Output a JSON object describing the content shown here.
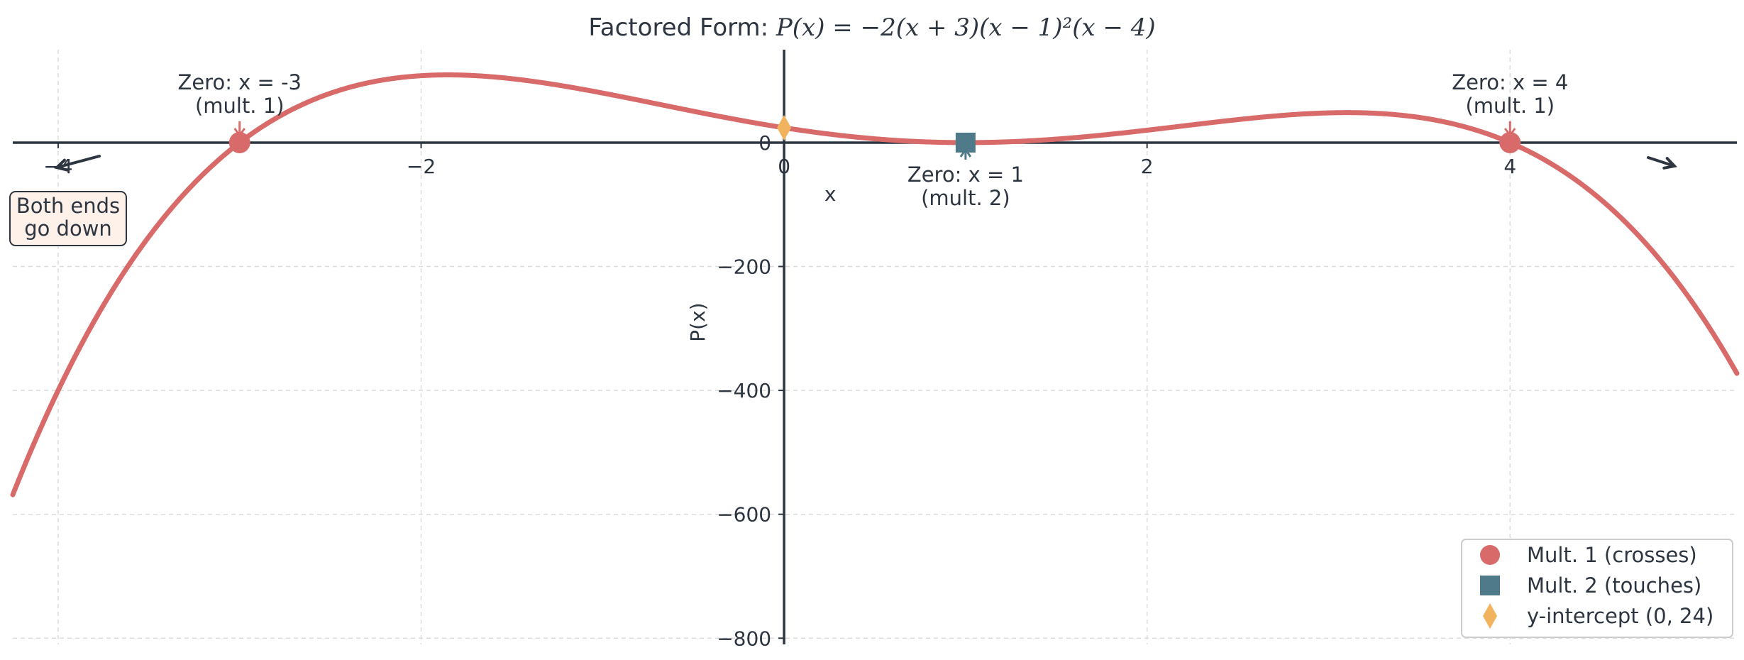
{
  "chart_data": {
    "type": "line",
    "title": {
      "prefix": "Factored Form: ",
      "formula": "P(x) = −2(x + 3)(x − 1)²(x − 4)"
    },
    "xlabel": "x",
    "ylabel": "P(x)",
    "xlim": [
      -4.25,
      5.25
    ],
    "ylim": [
      -810,
      150
    ],
    "x_ticks": [
      -4,
      -2,
      0,
      2,
      4
    ],
    "x_tick_labels": [
      "−4",
      "−2",
      "0",
      "2",
      "4"
    ],
    "y_ticks": [
      -800,
      -600,
      -400,
      -200,
      0
    ],
    "y_tick_labels": [
      "−800",
      "−600",
      "−400",
      "−200",
      "0"
    ],
    "grid": true,
    "legend_position": "bottom-right",
    "function": {
      "leading_coefficient": -2,
      "factors": [
        {
          "root": -3,
          "power": 1
        },
        {
          "root": 1,
          "power": 2
        },
        {
          "root": 4,
          "power": 1
        }
      ],
      "x_range": [
        -4.25,
        5.25
      ]
    },
    "zeros": [
      {
        "x": -3,
        "y": 0,
        "multiplicity": 1,
        "label": [
          "Zero: x = -3",
          "(mult. 1)"
        ]
      },
      {
        "x": 1,
        "y": 0,
        "multiplicity": 2,
        "label": [
          "Zero: x = 1",
          "(mult. 2)"
        ]
      },
      {
        "x": 4,
        "y": 0,
        "multiplicity": 1,
        "label": [
          "Zero: x = 4",
          "(mult. 1)"
        ]
      }
    ],
    "y_intercept": {
      "x": 0,
      "y": 24
    },
    "end_behavior_note": [
      "Both ends",
      "go down"
    ],
    "legend": [
      {
        "label": "Mult. 1 (crosses)",
        "marker": "circle"
      },
      {
        "label": "Mult. 2 (touches)",
        "marker": "square"
      },
      {
        "label": "y-intercept (0, 24)",
        "marker": "diamond"
      }
    ],
    "colors": {
      "curve": "#d96a6a",
      "mult1": "#d96a6a",
      "mult2": "#4f7a8a",
      "intercept": "#f2b35e",
      "axis": "#2d3540",
      "grid": "#dcdcdc",
      "note_bg": "#fdf1ea"
    }
  }
}
